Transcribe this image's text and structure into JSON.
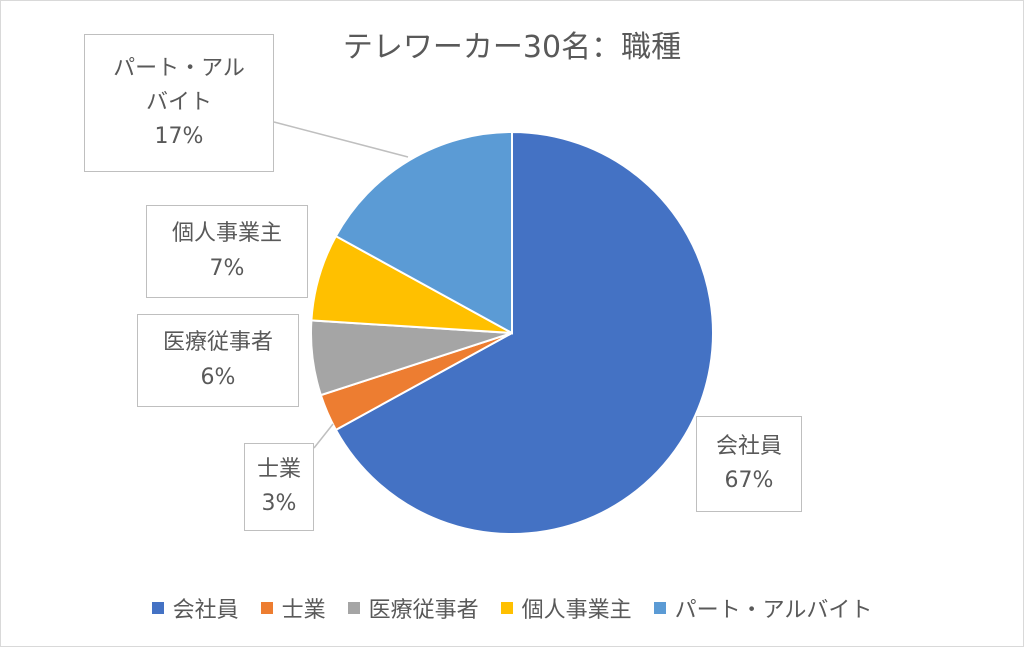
{
  "chart_data": {
    "type": "pie",
    "title": "テレワーカー30名：職種",
    "slices": [
      {
        "label": "会社員",
        "percent_label": "67%",
        "value": 67,
        "color": "#4472C4"
      },
      {
        "label": "士業",
        "percent_label": "3%",
        "value": 3,
        "color": "#ED7D31"
      },
      {
        "label": "医療従事者",
        "percent_label": "6%",
        "value": 6,
        "color": "#A5A5A5"
      },
      {
        "label": "個人事業主",
        "percent_label": "7%",
        "value": 7,
        "color": "#FFC000"
      },
      {
        "label": "パート・アルバイト",
        "percent_label": "17%",
        "value": 17,
        "color": "#5B9BD5"
      }
    ],
    "callout_lines": {
      "part_time": [
        "パート・アル",
        "バイト"
      ]
    },
    "legend_position": "bottom"
  }
}
